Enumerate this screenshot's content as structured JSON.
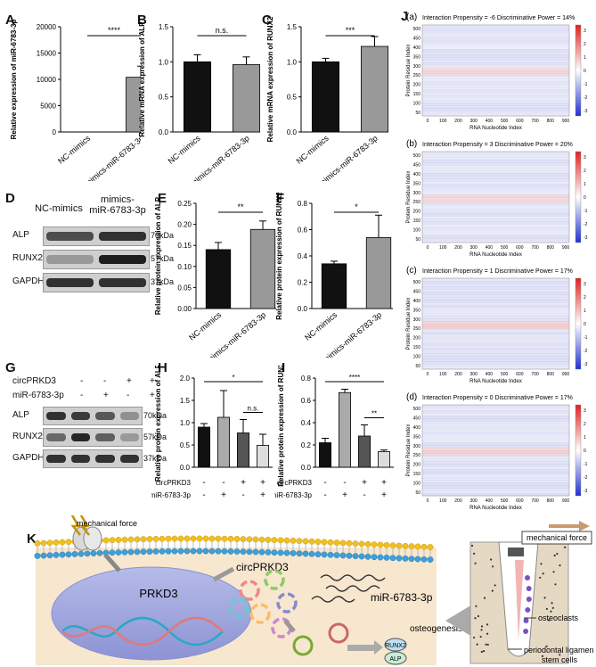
{
  "panels": {
    "A": {
      "letter": "A",
      "ylabel": "Relative expression of miR-6783-3p",
      "yticks": [
        "0",
        "5000",
        "10000",
        "15000",
        "20000"
      ],
      "categories": [
        "NC-mimics",
        "mimics-miR-6783-3p"
      ],
      "sig": "****"
    },
    "B": {
      "letter": "B",
      "ylabel": "Relative mRNA expression of ALP",
      "yticks": [
        "0.0",
        "0.5",
        "1.0",
        "1.5"
      ],
      "categories": [
        "NC-mimics",
        "mimics-miR-6783-3p"
      ],
      "sig": "n.s."
    },
    "C": {
      "letter": "C",
      "ylabel": "Relative mRNA expression of RUNX2",
      "yticks": [
        "0.0",
        "0.5",
        "1.0",
        "1.5"
      ],
      "categories": [
        "NC-mimics",
        "mimics-miR-6783-3p"
      ],
      "sig": "***"
    },
    "D": {
      "letter": "D",
      "lanes": [
        "NC-mimics",
        "mimics-\nmiR-6783-3p"
      ],
      "bands": [
        "ALP",
        "RUNX2",
        "GAPDH"
      ],
      "kda": [
        "70kDa",
        "57kDa",
        "37kDa"
      ]
    },
    "E": {
      "letter": "E",
      "ylabel": "Relative protein expression of ALP",
      "yticks": [
        "0.00",
        "0.05",
        "0.10",
        "0.15",
        "0.20",
        "0.25"
      ],
      "categories": [
        "NC-mimics",
        "mimics-miR-6783-3p"
      ],
      "sig": "**"
    },
    "F": {
      "letter": "F",
      "ylabel": "Relative protein expression of RUNX2",
      "yticks": [
        "0.0",
        "0.2",
        "0.4",
        "0.6",
        "0.8"
      ],
      "categories": [
        "NC-mimics",
        "mimics-miR-6783-3p"
      ],
      "sig": "*"
    },
    "G": {
      "letter": "G",
      "row1": "circPRKD3",
      "row2": "miR-6783-3p",
      "signs1": [
        "-",
        "-",
        "+",
        "+"
      ],
      "signs2": [
        "-",
        "+",
        "-",
        "+"
      ],
      "bands": [
        "ALP",
        "RUNX2",
        "GAPDH"
      ],
      "kda": [
        "70kDa",
        "57kDa",
        "37kDa"
      ]
    },
    "H": {
      "letter": "H",
      "ylabel": "Relative protein expression of ALP",
      "yticks": [
        "0.0",
        "0.5",
        "1.0",
        "1.5",
        "2.0"
      ],
      "row1": "circPRKD3",
      "row2": "miR-6783-3p",
      "signs1": [
        "-",
        "-",
        "+",
        "+"
      ],
      "signs2": [
        "-",
        "+",
        "-",
        "+"
      ],
      "sig1": "*",
      "sig2": "n.s."
    },
    "I": {
      "letter": "I",
      "ylabel": "Relative protein expression of RUNX2",
      "yticks": [
        "0.0",
        "0.2",
        "0.4",
        "0.6",
        "0.8"
      ],
      "row1": "circPRKD3",
      "row2": "miR-6783-3p",
      "signs1": [
        "-",
        "-",
        "+",
        "+"
      ],
      "signs2": [
        "-",
        "+",
        "-",
        "+"
      ],
      "sig1": "****",
      "sig2": "**"
    },
    "J": {
      "letter": "J",
      "heatmaps": [
        {
          "sub": "(a)",
          "title": "Interaction Propensity = -6   Discriminative Power = 14%"
        },
        {
          "sub": "(b)",
          "title": "Interaction Propensity = 3   Discriminative Power = 20%"
        },
        {
          "sub": "(c)",
          "title": "Interaction Propensity = 1   Discriminative Power = 17%"
        },
        {
          "sub": "(d)",
          "title": "Interaction Propensity = 0   Discriminative Power = 17%"
        }
      ],
      "xlabel": "RNA Nucleotide Index",
      "ylabel": "Protein Residue Index",
      "xticks": [
        "0",
        "100",
        "200",
        "300",
        "400",
        "500",
        "600",
        "700",
        "800",
        "900"
      ],
      "yticks": [
        "500",
        "450",
        "400",
        "350",
        "300",
        "250",
        "200",
        "150",
        "100",
        "50"
      ],
      "cbar_ticks": [
        "3",
        "2",
        "1",
        "0",
        "-1",
        "-2",
        "-3"
      ]
    },
    "K": {
      "letter": "K",
      "mechanical_force": "mechanical force",
      "mechanical_force_box": "mechanical force",
      "prkd3": "PRKD3",
      "circ": "circPRKD3",
      "mir": "miR-6783-3p",
      "osteogenesis": "osteogenesis",
      "runx2": "RUNX2",
      "alp": "ALP",
      "osteoclasts": "osteoclasts",
      "pdl": "periodontal ligament\nstem cells"
    }
  },
  "chart_data": [
    {
      "type": "bar",
      "categories": [
        "NC-mimics",
        "mimics-miR-6783-3p"
      ],
      "values": [
        1,
        10400
      ],
      "errors": [
        0,
        2100
      ],
      "ylabel": "Relative expression of miR-6783-3p",
      "ylim": [
        0,
        20000
      ],
      "colors": [
        "#111111",
        "#999999"
      ]
    },
    {
      "type": "bar",
      "categories": [
        "NC-mimics",
        "mimics-miR-6783-3p"
      ],
      "values": [
        1.0,
        0.96
      ],
      "errors": [
        0.1,
        0.11
      ],
      "ylabel": "Relative mRNA expression of ALP",
      "ylim": [
        0,
        1.5
      ],
      "colors": [
        "#111111",
        "#999999"
      ]
    },
    {
      "type": "bar",
      "categories": [
        "NC-mimics",
        "mimics-miR-6783-3p"
      ],
      "values": [
        1.0,
        1.22
      ],
      "errors": [
        0.05,
        0.14
      ],
      "ylabel": "Relative mRNA expression of RUNX2",
      "ylim": [
        0,
        1.5
      ],
      "colors": [
        "#111111",
        "#999999"
      ]
    },
    {
      "type": "bar",
      "categories": [
        "NC-mimics",
        "mimics-miR-6783-3p"
      ],
      "values": [
        0.14,
        0.188
      ],
      "errors": [
        0.017,
        0.02
      ],
      "ylabel": "Relative protein expression of ALP",
      "ylim": [
        0,
        0.25
      ],
      "colors": [
        "#111111",
        "#999999"
      ]
    },
    {
      "type": "bar",
      "categories": [
        "NC-mimics",
        "mimics-miR-6783-3p"
      ],
      "values": [
        0.34,
        0.54
      ],
      "errors": [
        0.02,
        0.17
      ],
      "ylabel": "Relative protein expression of RUNX2",
      "ylim": [
        0,
        0.8
      ],
      "colors": [
        "#111111",
        "#999999"
      ]
    },
    {
      "type": "bar",
      "categories": [
        "1",
        "2",
        "3",
        "4"
      ],
      "values": [
        0.9,
        1.12,
        0.77,
        0.49
      ],
      "errors": [
        0.08,
        0.6,
        0.3,
        0.25
      ],
      "ylabel": "Relative protein expression of ALP",
      "ylim": [
        0,
        2.0
      ],
      "colors": [
        "#111111",
        "#aaaaaa",
        "#555555",
        "#dddddd"
      ]
    },
    {
      "type": "bar",
      "categories": [
        "1",
        "2",
        "3",
        "4"
      ],
      "values": [
        0.22,
        0.67,
        0.28,
        0.14
      ],
      "errors": [
        0.04,
        0.03,
        0.1,
        0.015
      ],
      "ylabel": "Relative protein expression of RUNX2",
      "ylim": [
        0,
        0.8
      ],
      "colors": [
        "#111111",
        "#aaaaaa",
        "#555555",
        "#dddddd"
      ]
    }
  ]
}
